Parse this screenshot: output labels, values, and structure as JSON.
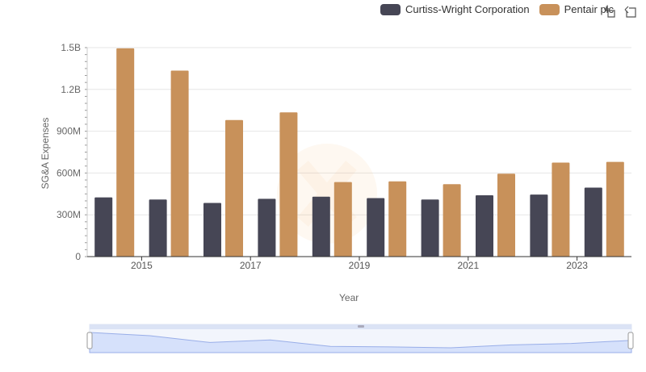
{
  "chart_data": {
    "type": "bar",
    "xlabel": "Year",
    "ylabel": "SG&A Expenses",
    "categories": [
      2014,
      2015,
      2016,
      2017,
      2018,
      2019,
      2020,
      2021,
      2022,
      2023
    ],
    "x_tick_labels": [
      "2015",
      "2017",
      "2019",
      "2021",
      "2023"
    ],
    "y_tick_labels": [
      "0",
      "300M",
      "600M",
      "900M",
      "1.2B",
      "1.5B"
    ],
    "ylim": [
      0,
      1500000000
    ],
    "series": [
      {
        "name": "Curtiss-Wright Corporation",
        "color": "#464655",
        "values": [
          425000000,
          410000000,
          385000000,
          415000000,
          430000000,
          420000000,
          410000000,
          440000000,
          445000000,
          495000000
        ]
      },
      {
        "name": "Pentair plc",
        "color": "#c8915a",
        "values": [
          1495000000,
          1335000000,
          980000000,
          1035000000,
          535000000,
          540000000,
          520000000,
          595000000,
          675000000,
          680000000
        ]
      }
    ],
    "grid": true,
    "legend": "top-right"
  },
  "icons": {
    "zoom": "zoom-icon",
    "reset": "reset-zoom-icon"
  }
}
